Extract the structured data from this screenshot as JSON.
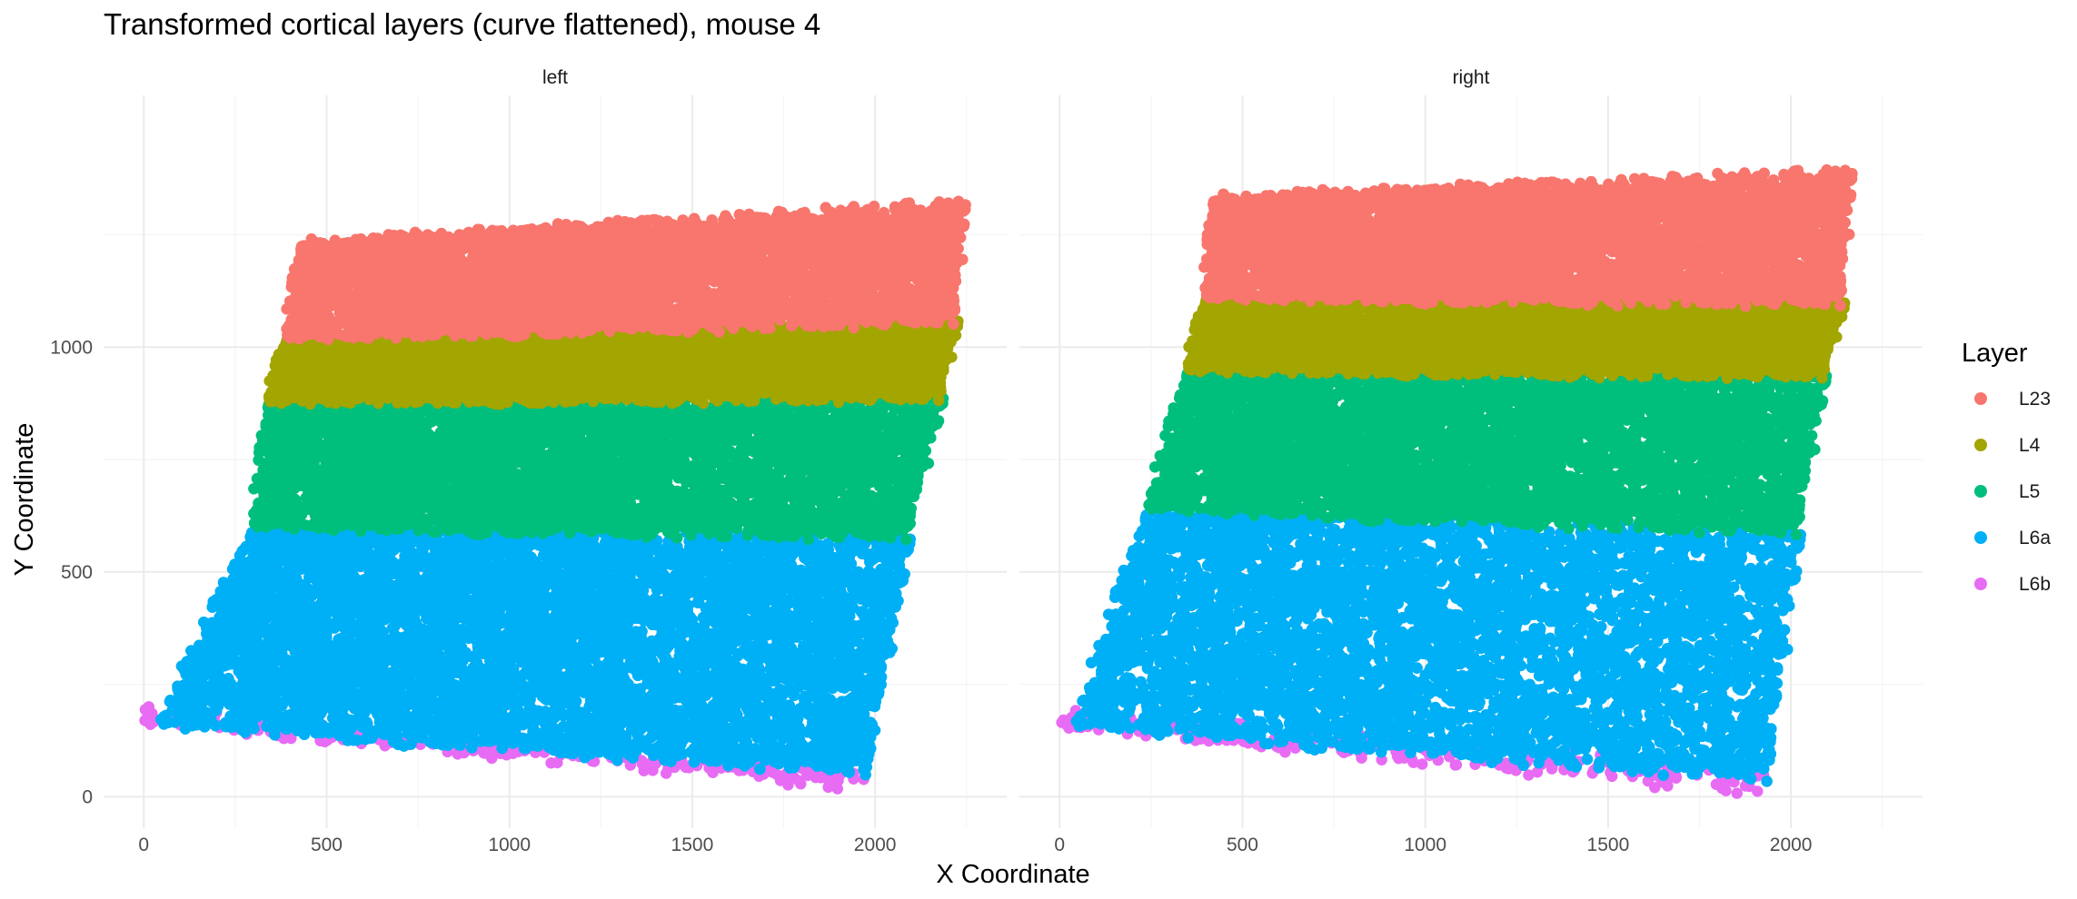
{
  "chart_data": {
    "type": "scatter",
    "title": "Transformed cortical layers (curve flattened), mouse 4",
    "xlabel": "X Coordinate",
    "ylabel": "Y Coordinate",
    "xlim": [
      -110,
      2360
    ],
    "ylim": [
      -70,
      1560
    ],
    "x_ticks": [
      0,
      500,
      1000,
      1500,
      2000
    ],
    "y_ticks": [
      0,
      500,
      1000
    ],
    "grid": true,
    "legend": {
      "title": "Layer",
      "position": "right",
      "entries": [
        "L23",
        "L4",
        "L5",
        "L6a",
        "L6b"
      ]
    },
    "colors": {
      "L23": "#F8766D",
      "L4": "#A3A500",
      "L5": "#00BF7D",
      "L6a": "#00B0F6",
      "L6b": "#E76BF3"
    },
    "facets": [
      {
        "name": "left",
        "layers": [
          {
            "layer": "L6b",
            "bottom_left": [
              0,
              168
            ],
            "bottom_right": [
              1960,
              20
            ],
            "top_left": [
              0,
              190
            ],
            "top_right": [
              1960,
              60
            ]
          },
          {
            "layer": "L6a",
            "bottom_left": [
              40,
              160
            ],
            "bottom_right": [
              1980,
              55
            ],
            "top_left": [
              300,
              600
            ],
            "top_right": [
              2090,
              580
            ]
          },
          {
            "layer": "L5",
            "bottom_left": [
              300,
              600
            ],
            "bottom_right": [
              2090,
              580
            ],
            "top_left": [
              340,
              880
            ],
            "top_right": [
              2180,
              890
            ]
          },
          {
            "layer": "L4",
            "bottom_left": [
              340,
              880
            ],
            "bottom_right": [
              2180,
              890
            ],
            "top_left": [
              390,
              1020
            ],
            "top_right": [
              2220,
              1060
            ]
          },
          {
            "layer": "L23",
            "bottom_left": [
              390,
              1020
            ],
            "bottom_right": [
              2220,
              1060
            ],
            "top_left": [
              430,
              1230
            ],
            "top_right": [
              2240,
              1320
            ]
          }
        ]
      },
      {
        "name": "right",
        "layers": [
          {
            "layer": "L6b",
            "bottom_left": [
              0,
              150
            ],
            "bottom_right": [
              1920,
              10
            ],
            "top_left": [
              0,
              195
            ],
            "top_right": [
              1920,
              60
            ]
          },
          {
            "layer": "L6a",
            "bottom_left": [
              40,
              155
            ],
            "bottom_right": [
              1940,
              40
            ],
            "top_left": [
              240,
              640
            ],
            "top_right": [
              2020,
              590
            ]
          },
          {
            "layer": "L5",
            "bottom_left": [
              240,
              640
            ],
            "bottom_right": [
              2020,
              590
            ],
            "top_left": [
              350,
              950
            ],
            "top_right": [
              2090,
              940
            ]
          },
          {
            "layer": "L4",
            "bottom_left": [
              350,
              950
            ],
            "bottom_right": [
              2090,
              940
            ],
            "top_left": [
              400,
              1110
            ],
            "top_right": [
              2140,
              1100
            ]
          },
          {
            "layer": "L23",
            "bottom_left": [
              400,
              1110
            ],
            "bottom_right": [
              2140,
              1100
            ],
            "top_left": [
              420,
              1330
            ],
            "top_right": [
              2160,
              1390
            ]
          }
        ]
      }
    ]
  }
}
